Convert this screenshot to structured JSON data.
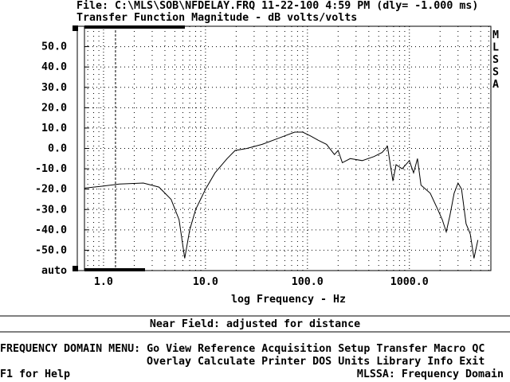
{
  "header": {
    "file_line": "File: C:\\MLS\\SOB\\NFDELAY.FRQ 11-22-100 4:59 PM (dly= -1.000 ms)",
    "side_label": [
      "M",
      "L",
      "S",
      "S",
      "A"
    ]
  },
  "chart_data": {
    "type": "line",
    "title": "Transfer Function Magnitude - dB volts/volts",
    "x_label": "log Frequency - Hz",
    "log_x": true,
    "grid": true,
    "color": "#000000",
    "xlim": [
      0.65,
      6300
    ],
    "ylim": [
      -60,
      60
    ],
    "xticks": [
      {
        "value": 1,
        "label": "1.0"
      },
      {
        "value": 10,
        "label": "10.0"
      },
      {
        "value": 100,
        "label": "100.0"
      },
      {
        "value": 1000,
        "label": "1000.0"
      }
    ],
    "xminor": [
      0.7,
      0.8,
      0.9,
      2,
      3,
      4,
      5,
      6,
      7,
      8,
      9,
      20,
      30,
      40,
      50,
      60,
      70,
      80,
      90,
      200,
      300,
      400,
      500,
      600,
      700,
      800,
      900,
      2000,
      3000,
      4000,
      5000,
      6000
    ],
    "yticks": [
      {
        "value": 50,
        "label": "50.0"
      },
      {
        "value": 40,
        "label": "40.0"
      },
      {
        "value": 30,
        "label": "30.0"
      },
      {
        "value": 20,
        "label": "20.0"
      },
      {
        "value": 10,
        "label": "10.0"
      },
      {
        "value": 0,
        "label": "0.0"
      },
      {
        "value": -10,
        "label": "-10.0"
      },
      {
        "value": -20,
        "label": "-20.0"
      },
      {
        "value": -30,
        "label": "-30.0"
      },
      {
        "value": -40,
        "label": "-40.0"
      },
      {
        "value": -50,
        "label": "-50.0"
      },
      {
        "value": -60,
        "label": "auto"
      }
    ],
    "cursor_x": 1.31,
    "x": [
      0.65,
      1,
      1.43,
      2.46,
      3.5,
      4.6,
      5.5,
      6.25,
      7,
      8,
      10,
      12.4,
      16.3,
      19.5,
      25.5,
      36,
      52,
      75,
      90,
      108,
      128,
      154,
      184,
      200,
      220,
      263,
      345,
      450,
      540,
      610,
      650,
      690,
      740,
      850,
      1000,
      1100,
      1200,
      1300,
      1600,
      1900,
      2100,
      2300,
      2500,
      2750,
      3000,
      3250,
      3600,
      3950,
      4300,
      4700
    ],
    "values": [
      -19.5,
      -18.5,
      -17.5,
      -17,
      -19,
      -25,
      -35,
      -54,
      -40,
      -30,
      -20,
      -12,
      -5,
      -1,
      0,
      2,
      5,
      8,
      8,
      6,
      4,
      2,
      -3,
      -1,
      -7,
      -5,
      -6,
      -4,
      -2,
      1,
      -8,
      -16,
      -8,
      -10,
      -6,
      -12,
      -5,
      -18,
      -22,
      -30,
      -35,
      -41,
      -33,
      -22,
      -17,
      -20,
      -37,
      -42,
      -54,
      -45
    ]
  },
  "status": "Near Field: adjusted for distance",
  "menu": {
    "title": "FREQUENCY DOMAIN MENU:",
    "row1": [
      "Go",
      "View",
      "Reference",
      "Acquisition",
      "Setup",
      "Transfer",
      "Macro",
      "QC"
    ],
    "row2": [
      "Overlay",
      "Calculate",
      "Printer",
      "DOS",
      "Units",
      "Library",
      "Info",
      "Exit"
    ]
  },
  "footer": {
    "help": "F1 for Help",
    "mode": "MLSSA: Frequency Domain"
  }
}
